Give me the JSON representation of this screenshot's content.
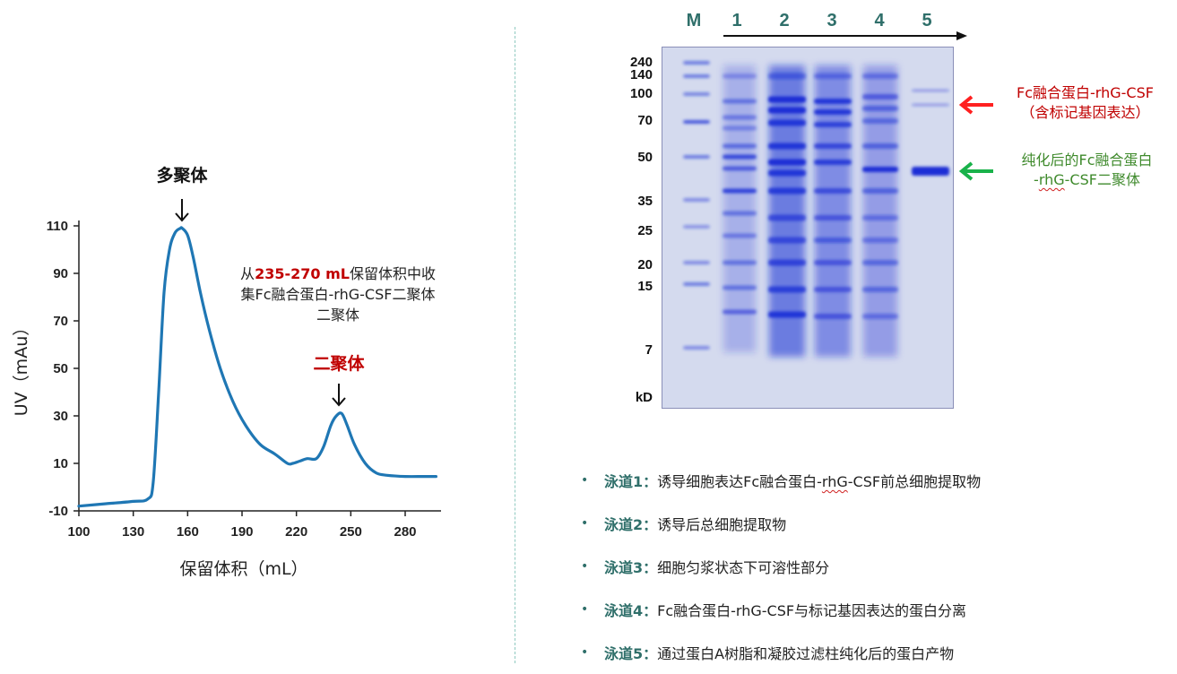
{
  "chart_data": {
    "type": "line",
    "xlabel": "保留体积（mL）",
    "ylabel": "UV（mAu）",
    "xlim": [
      100,
      300
    ],
    "ylim": [
      -10,
      110
    ],
    "xticks": [
      100,
      130,
      160,
      190,
      220,
      250,
      280
    ],
    "yticks": [
      -10,
      10,
      30,
      50,
      70,
      90,
      110
    ],
    "grid": false,
    "series": [
      {
        "color": "#1f77b4",
        "x": [
          100,
          115,
          130,
          138,
          141,
          144,
          147,
          150,
          153,
          156,
          157,
          160,
          163,
          167,
          172,
          178,
          185,
          192,
          200,
          208,
          215,
          218,
          222,
          226,
          231,
          235,
          239,
          242,
          245,
          248,
          252,
          258,
          264,
          270,
          280,
          290,
          297
        ],
        "y": [
          -8,
          -7,
          -6,
          -5,
          2,
          40,
          82,
          100,
          107,
          109,
          109,
          106,
          97,
          82,
          66,
          50,
          36,
          26,
          18,
          14,
          10,
          10,
          11,
          12,
          12,
          17,
          26,
          30,
          31,
          26,
          18,
          10,
          6,
          5,
          4.5,
          4.5,
          4.5
        ]
      }
    ],
    "annotations": [
      {
        "text": "多聚体",
        "x": 157,
        "y": 109
      },
      {
        "text": "二聚体",
        "x": 245,
        "y": 31
      }
    ],
    "note_parts": [
      "从",
      "235-270 mL",
      "保留体积中收集Fc融合蛋白-rhG-CSF二聚体二聚体"
    ]
  },
  "gel": {
    "lane_labels": [
      "M",
      "1",
      "2",
      "3",
      "4",
      "5"
    ],
    "mw_labels": [
      "240",
      "140",
      "100",
      "70",
      "50",
      "35",
      "25",
      "20",
      "15",
      "7",
      "kD"
    ],
    "annotation_red": [
      "Fc融合蛋白-rhG-CSF",
      "（含标记基因表达）"
    ],
    "annotation_green_line1": "纯化后的Fc融合蛋白",
    "annotation_green_line2_prefix": "-",
    "annotation_green_line2_squiggle": "rhG",
    "annotation_green_line2_suffix": "-CSF二聚体",
    "colors": {
      "red": "#c00000",
      "green": "#3f8a2c",
      "teal": "#2f6f6a",
      "gel_blue": "#1a2fd6"
    }
  },
  "legend": [
    {
      "name": "泳道1：",
      "pre": "诱导细胞表达Fc融合蛋白-",
      "squig": "rhG",
      "post": "-CSF前总细胞提取物"
    },
    {
      "name": "泳道2：",
      "pre": "诱导后总细胞提取物",
      "squig": "",
      "post": ""
    },
    {
      "name": "泳道3：",
      "pre": "细胞匀浆状态下可溶性部分",
      "squig": "",
      "post": ""
    },
    {
      "name": "泳道4：",
      "pre": "Fc融合蛋白-rhG-CSF与标记基因表达的蛋白分离",
      "squig": "",
      "post": ""
    },
    {
      "name": "泳道5：",
      "pre": "通过蛋白A树脂和凝胶过滤柱纯化后的蛋白产物",
      "squig": "",
      "post": ""
    }
  ]
}
